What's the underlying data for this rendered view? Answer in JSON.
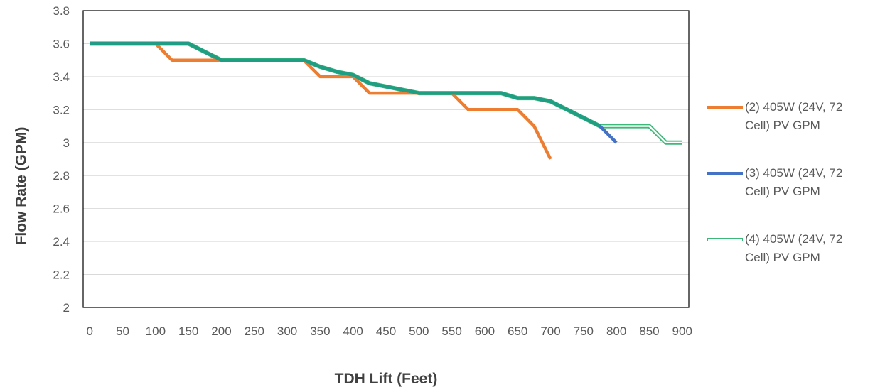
{
  "chart_data": {
    "type": "line",
    "xlabel": "TDH Lift  (Feet)",
    "ylabel": "Flow Rate (GPM)",
    "xlim": [
      -10,
      910
    ],
    "ylim": [
      2,
      3.8
    ],
    "x_ticks": [
      "0",
      "50",
      "100",
      "150",
      "200",
      "250",
      "300",
      "350",
      "400",
      "450",
      "500",
      "550",
      "600",
      "650",
      "700",
      "750",
      "800",
      "850",
      "900"
    ],
    "y_ticks": [
      "2",
      "2.2",
      "2.4",
      "2.6",
      "2.8",
      "3",
      "3.2",
      "3.4",
      "3.6",
      "3.8"
    ],
    "y_tick_values": [
      2,
      2.2,
      2.4,
      2.6,
      2.8,
      3,
      3.2,
      3.4,
      3.6,
      3.8
    ],
    "legend_position": "right",
    "grid": "horizontal",
    "series": [
      {
        "name": "(2) 405W (24V, 72 Cell) PV GPM",
        "color": "#ED7D31",
        "style": "solid",
        "x": [
          0,
          25,
          50,
          75,
          100,
          125,
          150,
          175,
          200,
          225,
          250,
          275,
          300,
          325,
          350,
          375,
          400,
          425,
          450,
          475,
          500,
          525,
          550,
          575,
          600,
          625,
          650,
          675,
          700
        ],
        "y": [
          3.6,
          3.6,
          3.6,
          3.6,
          3.6,
          3.5,
          3.5,
          3.5,
          3.5,
          3.5,
          3.5,
          3.5,
          3.5,
          3.5,
          3.4,
          3.4,
          3.4,
          3.3,
          3.3,
          3.3,
          3.3,
          3.3,
          3.3,
          3.2,
          3.2,
          3.2,
          3.2,
          3.1,
          2.9
        ]
      },
      {
        "name": "(3) 405W (24V, 72 Cell) PV GPM",
        "color": "#4472C4",
        "style": "solid",
        "x": [
          0,
          25,
          50,
          75,
          100,
          125,
          150,
          175,
          200,
          225,
          250,
          275,
          300,
          325,
          350,
          375,
          400,
          425,
          450,
          475,
          500,
          525,
          550,
          575,
          600,
          625,
          650,
          675,
          700,
          725,
          750,
          775,
          800
        ],
        "y": [
          3.6,
          3.6,
          3.6,
          3.6,
          3.6,
          3.6,
          3.6,
          3.55,
          3.5,
          3.5,
          3.5,
          3.5,
          3.5,
          3.5,
          3.46,
          3.43,
          3.41,
          3.36,
          3.34,
          3.32,
          3.3,
          3.3,
          3.3,
          3.3,
          3.3,
          3.3,
          3.27,
          3.27,
          3.25,
          3.2,
          3.15,
          3.1,
          3.0
        ]
      },
      {
        "name": "(4) 405W (24V, 72 Cell) PV GPM",
        "color": "#1E9E82",
        "style": "double",
        "x": [
          0,
          25,
          50,
          75,
          100,
          125,
          150,
          175,
          200,
          225,
          250,
          275,
          300,
          325,
          350,
          375,
          400,
          425,
          450,
          475,
          500,
          525,
          550,
          575,
          600,
          625,
          650,
          675,
          700,
          725,
          750,
          775,
          800,
          825,
          850,
          875,
          900
        ],
        "y": [
          3.6,
          3.6,
          3.6,
          3.6,
          3.6,
          3.6,
          3.6,
          3.55,
          3.5,
          3.5,
          3.5,
          3.5,
          3.5,
          3.5,
          3.46,
          3.43,
          3.41,
          3.36,
          3.34,
          3.32,
          3.3,
          3.3,
          3.3,
          3.3,
          3.3,
          3.3,
          3.27,
          3.27,
          3.25,
          3.2,
          3.15,
          3.1,
          3.1,
          3.1,
          3.1,
          3.0,
          3.0
        ]
      }
    ]
  },
  "legend": {
    "items": [
      {
        "line1": "(2) 405W (24V, 72",
        "line2": "Cell) PV GPM",
        "color": "#ED7D31"
      },
      {
        "line1": "(3) 405W (24V, 72",
        "line2": "Cell) PV GPM",
        "color": "#4472C4"
      },
      {
        "line1": "(4) 405W (24V, 72",
        "line2": "Cell) PV GPM",
        "color": "#3CB878"
      }
    ]
  }
}
